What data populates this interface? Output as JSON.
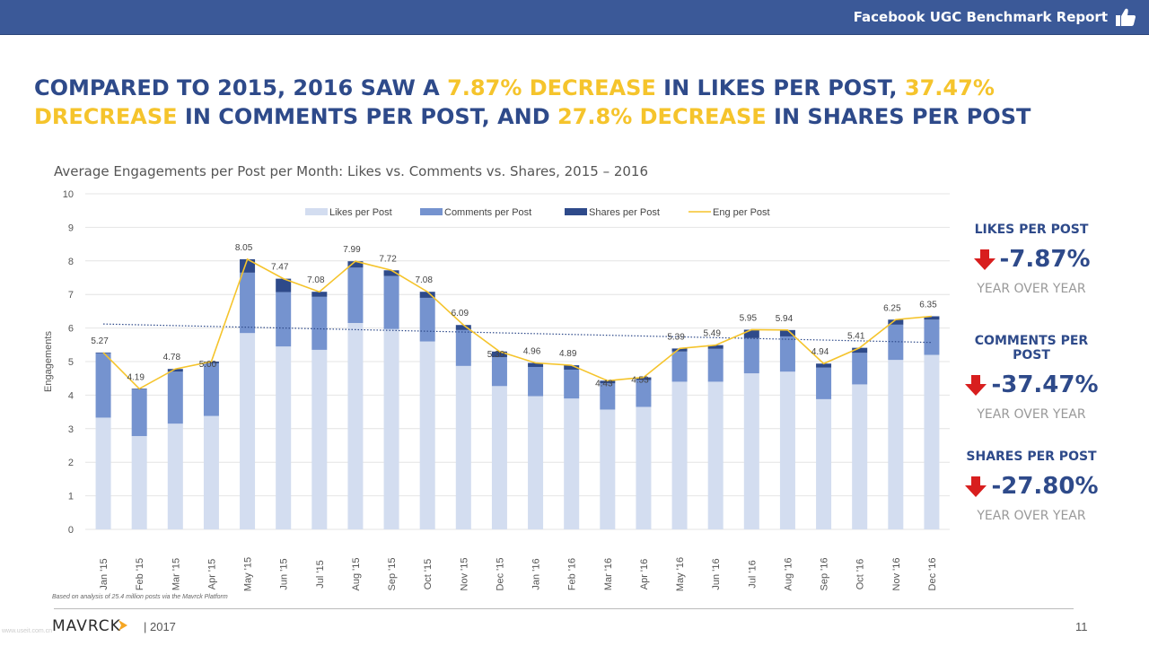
{
  "header": {
    "report_title": "Facebook UGC Benchmark Report"
  },
  "headline": {
    "p1": "COMPARED TO 2015, 2016 SAW A ",
    "h1": "7.87% DECREASE",
    "p2": " IN LIKES PER POST, ",
    "h2": "37.47% DRECREASE",
    "p3": " IN COMMENTS PER POST, AND ",
    "h3": "27.8% DECREASE",
    "p4": " IN SHARES PER POST"
  },
  "colors": {
    "likes": "#d3ddf0",
    "comments": "#7593cf",
    "shares": "#2e4a8a",
    "eng_line": "#f5c42c",
    "accent_blue": "#2e4a8a",
    "down_arrow": "#d81e1e"
  },
  "chart_data": {
    "type": "bar",
    "stacked": true,
    "title": "Average Engagements per Post per Month: Likes vs. Comments vs. Shares, 2015 – 2016",
    "ylabel": "Engagements",
    "xlabel": "",
    "ylim": [
      0,
      10
    ],
    "yticks": [
      0,
      1,
      2,
      3,
      4,
      5,
      6,
      7,
      8,
      9,
      10
    ],
    "grid": true,
    "legend": "top",
    "categories": [
      "Jan '15",
      "Feb '15",
      "Mar '15",
      "Apr '15",
      "May '15",
      "Jun '15",
      "Jul '15",
      "Aug '15",
      "Sep '15",
      "Oct '15",
      "Nov '15",
      "Dec '15",
      "Jan '16",
      "Feb '16",
      "Mar '16",
      "Apr '16",
      "May '16",
      "Jun '16",
      "Jul '16",
      "Aug '16",
      "Sep '16",
      "Oct '16",
      "Nov '16",
      "Dec '16"
    ],
    "series": [
      {
        "name": "Likes per Post",
        "kind": "bar",
        "values": [
          3.33,
          2.78,
          3.15,
          3.38,
          5.85,
          5.45,
          5.35,
          6.15,
          5.97,
          5.6,
          4.87,
          4.27,
          3.97,
          3.9,
          3.57,
          3.65,
          4.4,
          4.4,
          4.65,
          4.7,
          3.88,
          4.32,
          5.05,
          5.2
        ]
      },
      {
        "name": "Comments per Post",
        "kind": "bar",
        "values": [
          1.92,
          1.39,
          1.55,
          1.57,
          1.8,
          1.62,
          1.58,
          1.65,
          1.58,
          1.3,
          1.07,
          0.86,
          0.87,
          0.86,
          0.78,
          0.8,
          0.9,
          0.98,
          1.05,
          1.05,
          0.94,
          0.94,
          1.05,
          1.05
        ]
      },
      {
        "name": "Shares per Post",
        "kind": "bar",
        "values": [
          0.02,
          0.02,
          0.08,
          0.05,
          0.4,
          0.4,
          0.15,
          0.19,
          0.17,
          0.18,
          0.15,
          0.17,
          0.12,
          0.13,
          0.08,
          0.08,
          0.09,
          0.11,
          0.25,
          0.19,
          0.12,
          0.15,
          0.15,
          0.1
        ]
      },
      {
        "name": "Eng per Post",
        "kind": "line",
        "values": [
          5.27,
          4.19,
          4.78,
          5.0,
          8.05,
          7.47,
          7.08,
          7.99,
          7.72,
          7.08,
          6.09,
          5.3,
          4.96,
          4.89,
          4.43,
          4.53,
          5.39,
          5.49,
          5.95,
          5.94,
          4.94,
          5.41,
          6.25,
          6.35
        ]
      }
    ],
    "trendline": {
      "style": "dotted",
      "start": 6.12,
      "end": 5.57
    },
    "data_labels": [
      "5.27",
      "4.19",
      "4.78",
      "5.00",
      "8.05",
      "7.47",
      "7.08",
      "7.99",
      "7.72",
      "7.08",
      "6.09",
      "5.30",
      "4.96",
      "4.89",
      "4.43",
      "4.53",
      "5.39",
      "5.49",
      "5.95",
      "5.94",
      "4.94",
      "5.41",
      "6.25",
      "6.35"
    ]
  },
  "kpis": [
    {
      "title": "LIKES PER POST",
      "value": "-7.87%",
      "sub": "YEAR OVER YEAR"
    },
    {
      "title": "COMMENTS PER POST",
      "value": "-37.47%",
      "sub": "YEAR OVER YEAR"
    },
    {
      "title": "SHARES PER POST",
      "value": "-27.80%",
      "sub": "YEAR OVER YEAR"
    }
  ],
  "footer": {
    "note": "Based on analysis of 25.4 million posts via the Mavrck Platform",
    "logo": "MAVRCK",
    "year": "|  2017",
    "page": "11",
    "watermark": "www.useit.com.cn"
  }
}
